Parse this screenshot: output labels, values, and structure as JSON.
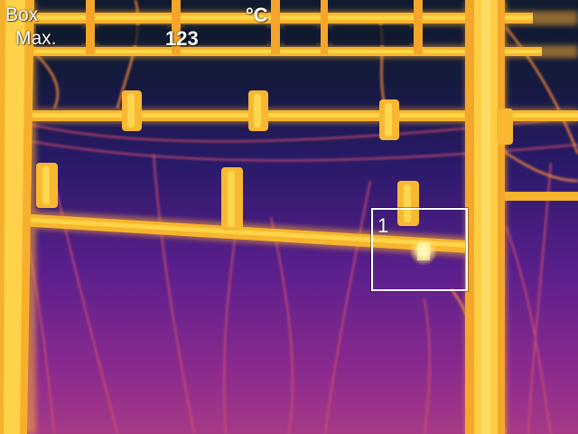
{
  "hud": {
    "measure_mode": "Box",
    "unit": "°C",
    "max_label": "Max.",
    "max_value": "123"
  },
  "measurement_box": {
    "id": "1"
  },
  "palette": {
    "background_top": "#101630",
    "background_mid": "#3a1a78",
    "background_bottom": "#a02f86",
    "warm": "#e06a2a",
    "hot": "#f5b52c",
    "hotter": "#ffd84a",
    "hottest": "#fffbe0"
  }
}
